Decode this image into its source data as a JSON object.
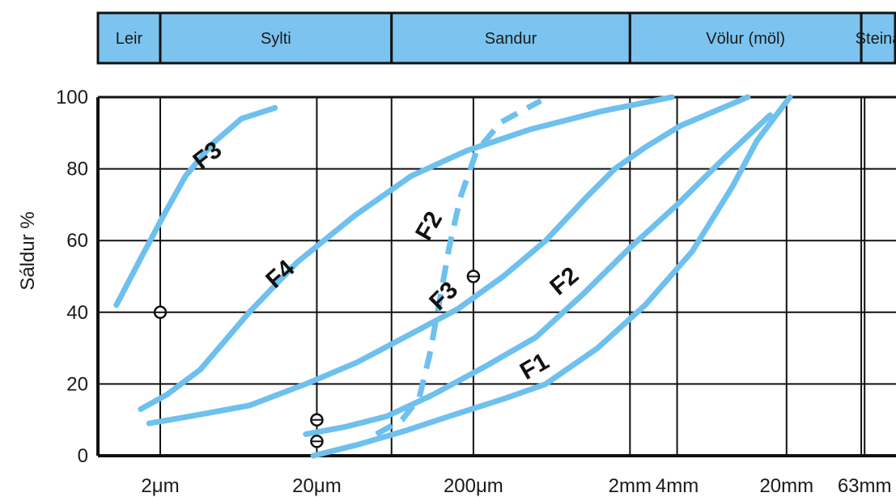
{
  "chart_data": {
    "type": "line",
    "x_scale": "log",
    "xlim_um": [
      0.8,
      100000
    ],
    "ylim": [
      0,
      100
    ],
    "ylabel": "Sáldur %",
    "yticks": [
      0,
      20,
      40,
      60,
      80,
      100
    ],
    "xticks": [
      {
        "value_um": 2,
        "label": "2μm"
      },
      {
        "value_um": 20,
        "label": "20μm"
      },
      {
        "value_um": 200,
        "label": "200μm"
      },
      {
        "value_um": 2000,
        "label": "2mm"
      },
      {
        "value_um": 4000,
        "label": "4mm"
      },
      {
        "value_um": 20000,
        "label": "20mm"
      },
      {
        "value_um": 63000,
        "label": "63mm"
      }
    ],
    "grid": true,
    "bands": [
      {
        "label": "Leir",
        "from_um": 0.8,
        "to_um": 2,
        "color": "#7cc4ef"
      },
      {
        "label": "Sylti",
        "from_um": 2,
        "to_um": 60,
        "color": "#7cc4ef"
      },
      {
        "label": "Sandur",
        "from_um": 60,
        "to_um": 2000,
        "color": "#7cc4ef"
      },
      {
        "label": "Völur (möl)",
        "from_um": 2000,
        "to_um": 60000,
        "color": "#7cc4ef"
      },
      {
        "label": "Steina",
        "from_um": 60000,
        "to_um": 100000,
        "color": "#7cc4ef"
      }
    ],
    "series": [
      {
        "id": "f3-fine",
        "dashed": false,
        "color": "#6ec0ee",
        "points": [
          [
            1.05,
            42
          ],
          [
            1.5,
            55
          ],
          [
            2.1,
            67
          ],
          [
            2.9,
            78
          ],
          [
            4.3,
            87
          ],
          [
            6.6,
            94
          ],
          [
            10.8,
            97
          ]
        ]
      },
      {
        "id": "f4",
        "dashed": false,
        "color": "#6ec0ee",
        "points": [
          [
            1.5,
            13
          ],
          [
            2.2,
            17
          ],
          [
            3.6,
            24
          ],
          [
            7.4,
            40
          ],
          [
            15,
            54
          ],
          [
            35,
            67
          ],
          [
            80,
            78
          ],
          [
            180,
            85
          ],
          [
            460,
            91
          ],
          [
            1300,
            96
          ],
          [
            3700,
            100
          ]
        ]
      },
      {
        "id": "f3-sand",
        "dashed": false,
        "color": "#6ec0ee",
        "points": [
          [
            1.7,
            9
          ],
          [
            3.1,
            11
          ],
          [
            7.4,
            14
          ],
          [
            17,
            20
          ],
          [
            36,
            26
          ],
          [
            80,
            34
          ],
          [
            160,
            41
          ],
          [
            310,
            50
          ],
          [
            580,
            60
          ],
          [
            1050,
            72
          ],
          [
            1600,
            80
          ],
          [
            2500,
            86
          ],
          [
            4200,
            92
          ],
          [
            11300,
            100
          ]
        ]
      },
      {
        "id": "f2",
        "dashed": false,
        "color": "#6ec0ee",
        "points": [
          [
            17,
            6
          ],
          [
            30,
            8
          ],
          [
            56,
            11
          ],
          [
            110,
            17
          ],
          [
            240,
            25
          ],
          [
            500,
            33
          ],
          [
            1000,
            45
          ],
          [
            2000,
            58
          ],
          [
            4000,
            70
          ],
          [
            8000,
            83
          ],
          [
            15700,
            95
          ]
        ]
      },
      {
        "id": "f1",
        "dashed": false,
        "color": "#6ec0ee",
        "points": [
          [
            19,
            0
          ],
          [
            36,
            3
          ],
          [
            74,
            7
          ],
          [
            140,
            11
          ],
          [
            320,
            16
          ],
          [
            580,
            20
          ],
          [
            1240,
            30
          ],
          [
            2500,
            42
          ],
          [
            5000,
            57
          ],
          [
            9000,
            75
          ],
          [
            13000,
            88
          ],
          [
            21000,
            100
          ]
        ]
      },
      {
        "id": "f2-dashed",
        "dashed": true,
        "color": "#6ec0ee",
        "points": [
          [
            48,
            6
          ],
          [
            70,
            10
          ],
          [
            90,
            16
          ],
          [
            105,
            28
          ],
          [
            118,
            40
          ],
          [
            140,
            58
          ],
          [
            165,
            72
          ],
          [
            210,
            85
          ],
          [
            300,
            93
          ],
          [
            540,
            99
          ]
        ]
      }
    ],
    "markers": [
      {
        "x_um": 2,
        "y": 40
      },
      {
        "x_um": 20,
        "y": 10
      },
      {
        "x_um": 20,
        "y": 4
      },
      {
        "x_um": 200,
        "y": 50
      }
    ],
    "curve_labels": [
      {
        "text": "F3",
        "x_um": 4.3,
        "y": 82,
        "rotate": -38
      },
      {
        "text": "F4",
        "x_um": 12.6,
        "y": 49,
        "rotate": -42
      },
      {
        "text": "F2",
        "x_um": 115,
        "y": 63,
        "rotate": -60
      },
      {
        "text": "F3",
        "x_um": 140,
        "y": 43,
        "rotate": -45
      },
      {
        "text": "F2",
        "x_um": 820,
        "y": 47,
        "rotate": -40
      },
      {
        "text": "F1",
        "x_um": 520,
        "y": 23,
        "rotate": -30
      }
    ]
  }
}
